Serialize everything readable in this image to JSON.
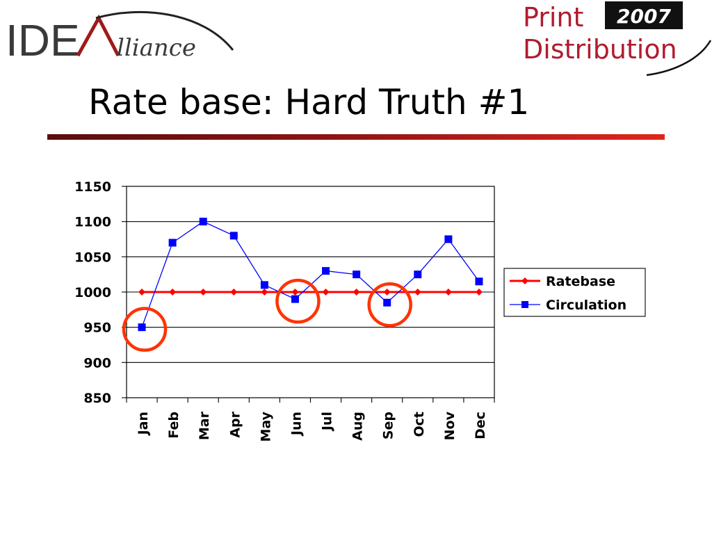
{
  "header": {
    "left_logo": {
      "word_a": "IDE",
      "word_b": "lliance"
    },
    "right_logo": {
      "line1": "Print",
      "line2": "Distribution",
      "year": "2007"
    },
    "title": "Rate base:  Hard Truth #1"
  },
  "colors": {
    "ratebase": "#ff0000",
    "circulation": "#0000ff",
    "highlight_circle": "#ff3300",
    "title_rule": "#8b1414"
  },
  "chart_data": {
    "type": "line",
    "categories": [
      "Jan",
      "Feb",
      "Mar",
      "Apr",
      "May",
      "Jun",
      "Jul",
      "Aug",
      "Sep",
      "Oct",
      "Nov",
      "Dec"
    ],
    "ylim": [
      850,
      1150
    ],
    "yticks": [
      850,
      900,
      950,
      1000,
      1050,
      1100,
      1150
    ],
    "grid": true,
    "legend_position": "right",
    "series": [
      {
        "name": "Ratebase",
        "marker": "diamond",
        "values": [
          1000,
          1000,
          1000,
          1000,
          1000,
          1000,
          1000,
          1000,
          1000,
          1000,
          1000,
          1000
        ]
      },
      {
        "name": "Circulation",
        "marker": "square",
        "values": [
          950,
          1070,
          1100,
          1080,
          1010,
          990,
          1030,
          1025,
          985,
          1025,
          1075,
          1015
        ]
      }
    ],
    "highlighted_categories": [
      "Jan",
      "Jun",
      "Sep"
    ]
  }
}
